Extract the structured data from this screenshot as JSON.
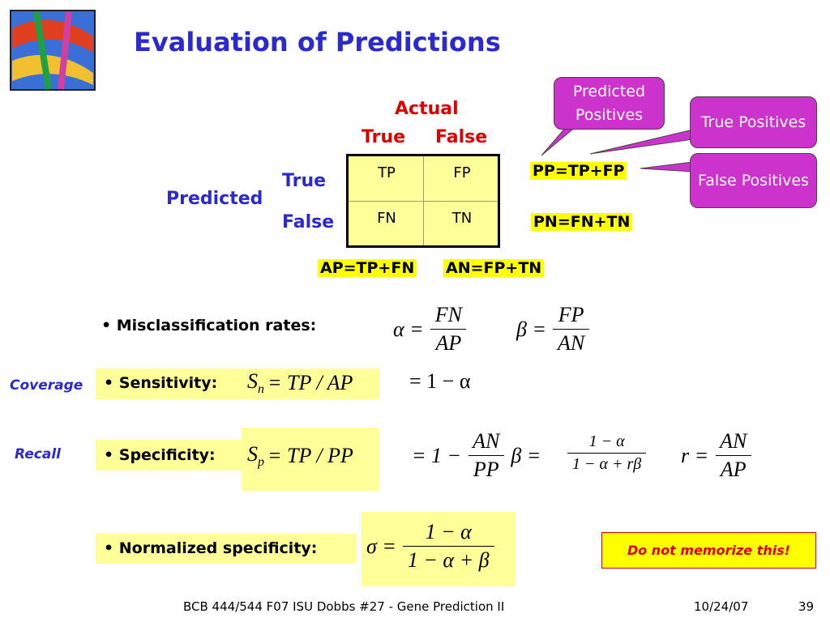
{
  "header": {
    "title": "Evaluation of Predictions"
  },
  "matrix": {
    "actual_label": "Actual",
    "actual_true": "True",
    "actual_false": "False",
    "predicted_label": "Predicted",
    "predicted_true": "True",
    "predicted_false": "False",
    "cells": [
      [
        "TP",
        "FP"
      ],
      [
        "FN",
        "TN"
      ]
    ],
    "row_sums": [
      "PP=TP+FP",
      "PN=FN+TN"
    ],
    "col_sums": [
      "AP=TP+FN",
      "AN=FP+TN"
    ]
  },
  "callouts": [
    "Predicted Positives",
    "True Positives",
    "False Positives"
  ],
  "bullets": [
    "Misclassification rates:",
    "Sensitivity:",
    "Specificity:",
    "Normalized specificity:"
  ],
  "side_labels": [
    "Coverage",
    "Recall"
  ],
  "formulas": {
    "alpha": {
      "lhs": "α =",
      "num": "FN",
      "den": "AP"
    },
    "beta": {
      "lhs": "β =",
      "num": "FP",
      "den": "AN"
    },
    "sensitivity": {
      "symbol": "S",
      "sub": "n",
      "rhs": "= TP / AP"
    },
    "sensitivity_alt": "= 1 − α",
    "specificity": {
      "symbol": "S",
      "sub": "p",
      "rhs": "= TP / PP"
    },
    "specificity_alt": {
      "lhs": "= 1 −",
      "num": "AN",
      "den": "PP",
      "rhs": "β ="
    },
    "specificity_alt2": {
      "num": "1 − α",
      "den": "1 − α + rβ"
    },
    "r": {
      "lhs": "r =",
      "num": "AN",
      "den": "AP"
    },
    "normalized": {
      "lhs": "σ =",
      "num": "1 − α",
      "den": "1 − α + β"
    }
  },
  "note": "Do not memorize this!",
  "footer": {
    "left": "BCB 444/544 F07 ISU Dobbs #27 - Gene Prediction II",
    "date": "10/24/07",
    "page": "39"
  }
}
